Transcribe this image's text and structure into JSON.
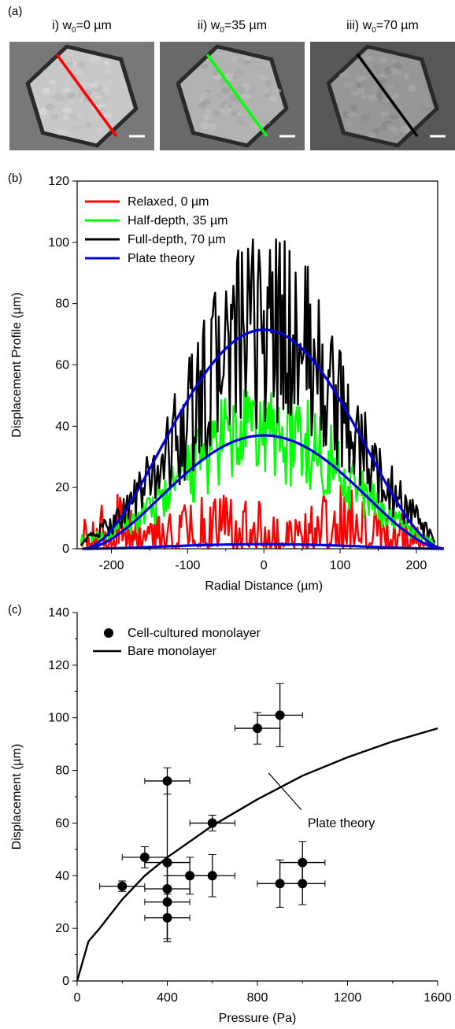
{
  "panel_labels": {
    "a": "(a)",
    "b": "(b)",
    "c": "(c)"
  },
  "images": [
    {
      "prefix": "i) w",
      "sub": "0",
      "suffix": "=0 µm",
      "line_color": "#ff0000",
      "dark": 0.0
    },
    {
      "prefix": "ii) w",
      "sub": "0",
      "suffix": "=35 µm",
      "line_color": "#00ff00",
      "dark": 0.25
    },
    {
      "prefix": "iii) w",
      "sub": "0",
      "suffix": "=70 µm",
      "line_color": "#000000",
      "dark": 0.55
    }
  ],
  "chart_data": [
    {
      "type": "line",
      "panel": "(b)",
      "xlabel": "Radial Distance (µm)",
      "ylabel": "Displacement Profile (µm)",
      "xlim": [
        -245,
        228
      ],
      "ylim": [
        0,
        120
      ],
      "xticks": [
        -200,
        -100,
        0,
        100,
        200
      ],
      "yticks": [
        0,
        20,
        40,
        60,
        80,
        100,
        120
      ],
      "legend_position": "top-left",
      "series": [
        {
          "name": "Relaxed, 0 µm",
          "color": "#ff0000",
          "kind": "noisy",
          "x": [
            -240,
            -200,
            -150,
            -100,
            -50,
            0,
            50,
            100,
            150,
            200,
            225
          ],
          "y": [
            5,
            10,
            6,
            8,
            9,
            8,
            6,
            12,
            8,
            5,
            2
          ]
        },
        {
          "name": "Half-depth, 35 µm",
          "color": "#00ff00",
          "kind": "noisy",
          "x": [
            -240,
            -200,
            -150,
            -100,
            -50,
            0,
            50,
            100,
            150,
            200,
            225
          ],
          "y": [
            3,
            5,
            12,
            25,
            35,
            38,
            36,
            26,
            13,
            5,
            2
          ]
        },
        {
          "name": "Full-depth, 70 µm",
          "color": "#000000",
          "kind": "noisy",
          "x": [
            -240,
            -200,
            -150,
            -100,
            -50,
            0,
            50,
            100,
            150,
            200,
            225
          ],
          "y": [
            2,
            8,
            22,
            42,
            65,
            72,
            68,
            45,
            24,
            10,
            2
          ]
        },
        {
          "name": "Plate theory",
          "color": "#0000dd",
          "kind": "smooth",
          "curves": [
            {
              "peak": 71.5,
              "half_width": 238
            },
            {
              "peak": 37,
              "half_width": 238
            },
            {
              "peak": 1.5,
              "half_width": 238
            }
          ]
        }
      ]
    },
    {
      "type": "scatter",
      "panel": "(c)",
      "xlabel": "Pressure (Pa)",
      "ylabel": "Displacement (µm)",
      "xlim": [
        0,
        1600
      ],
      "ylim": [
        0,
        140
      ],
      "xticks": [
        0,
        400,
        800,
        1200,
        1600
      ],
      "yticks": [
        0,
        20,
        40,
        60,
        80,
        100,
        120,
        140
      ],
      "legend_position": "top-left",
      "series": [
        {
          "name": "Cell-cultured monolayer",
          "kind": "points",
          "points": [
            {
              "x": 200,
              "y": 36,
              "xerr": 100,
              "yerr": 2
            },
            {
              "x": 300,
              "y": 47,
              "xerr": 100,
              "yerr": 4
            },
            {
              "x": 400,
              "y": 76,
              "xerr": 100,
              "yerr": 5
            },
            {
              "x": 400,
              "y": 45,
              "xerr": 100,
              "yerr": 30
            },
            {
              "x": 400,
              "y": 35,
              "xerr": 100,
              "yerr": 5
            },
            {
              "x": 400,
              "y": 30,
              "xerr": 100,
              "yerr": 14
            },
            {
              "x": 400,
              "y": 24,
              "xerr": 100,
              "yerr": 9
            },
            {
              "x": 500,
              "y": 40,
              "xerr": 100,
              "yerr": 7
            },
            {
              "x": 600,
              "y": 60,
              "xerr": 100,
              "yerr": 3
            },
            {
              "x": 600,
              "y": 40,
              "xerr": 100,
              "yerr": 8
            },
            {
              "x": 800,
              "y": 96,
              "xerr": 100,
              "yerr": 6
            },
            {
              "x": 900,
              "y": 101,
              "xerr": 100,
              "yerr": 12
            },
            {
              "x": 900,
              "y": 37,
              "xerr": 100,
              "yerr": 9
            },
            {
              "x": 1000,
              "y": 45,
              "xerr": 100,
              "yerr": 8
            },
            {
              "x": 1000,
              "y": 37,
              "xerr": 100,
              "yerr": 8
            }
          ]
        },
        {
          "name": "Bare monolayer",
          "kind": "curve",
          "x": [
            0,
            50,
            100,
            200,
            300,
            400,
            600,
            800,
            1000,
            1200,
            1400,
            1600
          ],
          "y": [
            0,
            15,
            20,
            31,
            40,
            47,
            59,
            69,
            78,
            85,
            91,
            96
          ]
        }
      ],
      "annotation": {
        "text": "Plate theory",
        "x": 1030,
        "y": 60,
        "arrow_to": {
          "x": 850,
          "y": 79
        }
      }
    }
  ]
}
